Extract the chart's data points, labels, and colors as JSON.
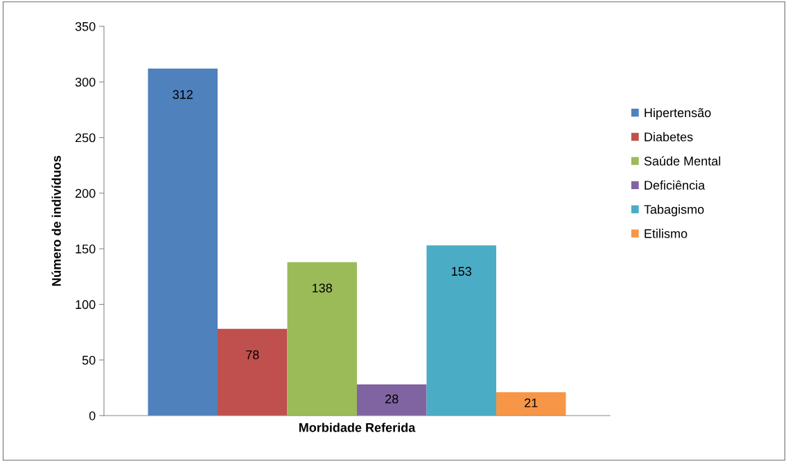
{
  "chart_data": {
    "type": "bar",
    "xlabel": "Morbidade Referida",
    "ylabel": "Número de indivíduos",
    "categories": [
      null
    ],
    "series": [
      {
        "name": "Hipertensão",
        "color": "#4f81bd",
        "values": [
          312
        ]
      },
      {
        "name": "Diabetes",
        "color": "#c0504d",
        "values": [
          78
        ]
      },
      {
        "name": "Saúde Mental",
        "color": "#9bbb59",
        "values": [
          138
        ]
      },
      {
        "name": "Deficiência",
        "color": "#8064a2",
        "values": [
          28
        ]
      },
      {
        "name": "Tabagismo",
        "color": "#4bacc6",
        "values": [
          153
        ]
      },
      {
        "name": "Etilismo",
        "color": "#f79646",
        "values": [
          21
        ]
      }
    ],
    "ylim": [
      0,
      350
    ],
    "yticks": [
      0,
      50,
      100,
      150,
      200,
      250,
      300,
      350
    ],
    "data_labels": true,
    "legend": "right",
    "grid": false
  }
}
